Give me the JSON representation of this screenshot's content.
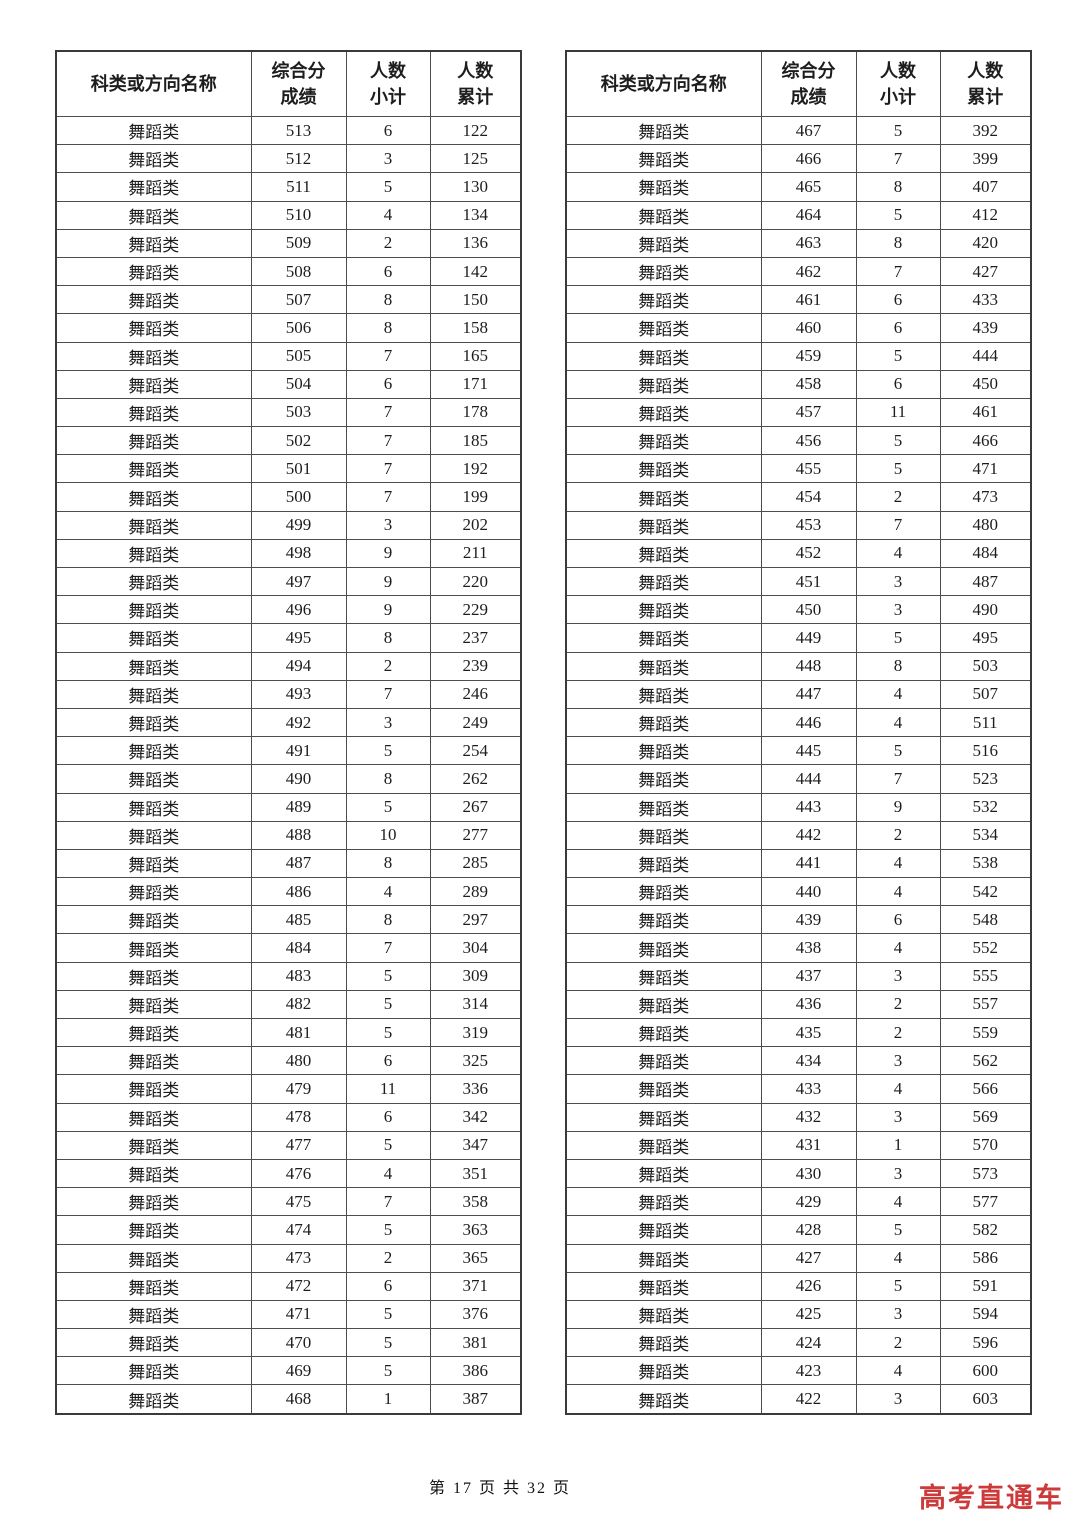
{
  "page": {
    "footer": "第 17 页 共 32 页",
    "watermark": "高考直通车",
    "watermark_color": "#cd3a3a"
  },
  "tables": [
    {
      "headers": [
        [
          "科类或方向名称"
        ],
        [
          "综合分",
          "成绩"
        ],
        [
          "人数",
          "小计"
        ],
        [
          "人数",
          "累计"
        ]
      ],
      "rows": [
        [
          "舞蹈类",
          "513",
          "6",
          "122"
        ],
        [
          "舞蹈类",
          "512",
          "3",
          "125"
        ],
        [
          "舞蹈类",
          "511",
          "5",
          "130"
        ],
        [
          "舞蹈类",
          "510",
          "4",
          "134"
        ],
        [
          "舞蹈类",
          "509",
          "2",
          "136"
        ],
        [
          "舞蹈类",
          "508",
          "6",
          "142"
        ],
        [
          "舞蹈类",
          "507",
          "8",
          "150"
        ],
        [
          "舞蹈类",
          "506",
          "8",
          "158"
        ],
        [
          "舞蹈类",
          "505",
          "7",
          "165"
        ],
        [
          "舞蹈类",
          "504",
          "6",
          "171"
        ],
        [
          "舞蹈类",
          "503",
          "7",
          "178"
        ],
        [
          "舞蹈类",
          "502",
          "7",
          "185"
        ],
        [
          "舞蹈类",
          "501",
          "7",
          "192"
        ],
        [
          "舞蹈类",
          "500",
          "7",
          "199"
        ],
        [
          "舞蹈类",
          "499",
          "3",
          "202"
        ],
        [
          "舞蹈类",
          "498",
          "9",
          "211"
        ],
        [
          "舞蹈类",
          "497",
          "9",
          "220"
        ],
        [
          "舞蹈类",
          "496",
          "9",
          "229"
        ],
        [
          "舞蹈类",
          "495",
          "8",
          "237"
        ],
        [
          "舞蹈类",
          "494",
          "2",
          "239"
        ],
        [
          "舞蹈类",
          "493",
          "7",
          "246"
        ],
        [
          "舞蹈类",
          "492",
          "3",
          "249"
        ],
        [
          "舞蹈类",
          "491",
          "5",
          "254"
        ],
        [
          "舞蹈类",
          "490",
          "8",
          "262"
        ],
        [
          "舞蹈类",
          "489",
          "5",
          "267"
        ],
        [
          "舞蹈类",
          "488",
          "10",
          "277"
        ],
        [
          "舞蹈类",
          "487",
          "8",
          "285"
        ],
        [
          "舞蹈类",
          "486",
          "4",
          "289"
        ],
        [
          "舞蹈类",
          "485",
          "8",
          "297"
        ],
        [
          "舞蹈类",
          "484",
          "7",
          "304"
        ],
        [
          "舞蹈类",
          "483",
          "5",
          "309"
        ],
        [
          "舞蹈类",
          "482",
          "5",
          "314"
        ],
        [
          "舞蹈类",
          "481",
          "5",
          "319"
        ],
        [
          "舞蹈类",
          "480",
          "6",
          "325"
        ],
        [
          "舞蹈类",
          "479",
          "11",
          "336"
        ],
        [
          "舞蹈类",
          "478",
          "6",
          "342"
        ],
        [
          "舞蹈类",
          "477",
          "5",
          "347"
        ],
        [
          "舞蹈类",
          "476",
          "4",
          "351"
        ],
        [
          "舞蹈类",
          "475",
          "7",
          "358"
        ],
        [
          "舞蹈类",
          "474",
          "5",
          "363"
        ],
        [
          "舞蹈类",
          "473",
          "2",
          "365"
        ],
        [
          "舞蹈类",
          "472",
          "6",
          "371"
        ],
        [
          "舞蹈类",
          "471",
          "5",
          "376"
        ],
        [
          "舞蹈类",
          "470",
          "5",
          "381"
        ],
        [
          "舞蹈类",
          "469",
          "5",
          "386"
        ],
        [
          "舞蹈类",
          "468",
          "1",
          "387"
        ]
      ]
    },
    {
      "headers": [
        [
          "科类或方向名称"
        ],
        [
          "综合分",
          "成绩"
        ],
        [
          "人数",
          "小计"
        ],
        [
          "人数",
          "累计"
        ]
      ],
      "rows": [
        [
          "舞蹈类",
          "467",
          "5",
          "392"
        ],
        [
          "舞蹈类",
          "466",
          "7",
          "399"
        ],
        [
          "舞蹈类",
          "465",
          "8",
          "407"
        ],
        [
          "舞蹈类",
          "464",
          "5",
          "412"
        ],
        [
          "舞蹈类",
          "463",
          "8",
          "420"
        ],
        [
          "舞蹈类",
          "462",
          "7",
          "427"
        ],
        [
          "舞蹈类",
          "461",
          "6",
          "433"
        ],
        [
          "舞蹈类",
          "460",
          "6",
          "439"
        ],
        [
          "舞蹈类",
          "459",
          "5",
          "444"
        ],
        [
          "舞蹈类",
          "458",
          "6",
          "450"
        ],
        [
          "舞蹈类",
          "457",
          "11",
          "461"
        ],
        [
          "舞蹈类",
          "456",
          "5",
          "466"
        ],
        [
          "舞蹈类",
          "455",
          "5",
          "471"
        ],
        [
          "舞蹈类",
          "454",
          "2",
          "473"
        ],
        [
          "舞蹈类",
          "453",
          "7",
          "480"
        ],
        [
          "舞蹈类",
          "452",
          "4",
          "484"
        ],
        [
          "舞蹈类",
          "451",
          "3",
          "487"
        ],
        [
          "舞蹈类",
          "450",
          "3",
          "490"
        ],
        [
          "舞蹈类",
          "449",
          "5",
          "495"
        ],
        [
          "舞蹈类",
          "448",
          "8",
          "503"
        ],
        [
          "舞蹈类",
          "447",
          "4",
          "507"
        ],
        [
          "舞蹈类",
          "446",
          "4",
          "511"
        ],
        [
          "舞蹈类",
          "445",
          "5",
          "516"
        ],
        [
          "舞蹈类",
          "444",
          "7",
          "523"
        ],
        [
          "舞蹈类",
          "443",
          "9",
          "532"
        ],
        [
          "舞蹈类",
          "442",
          "2",
          "534"
        ],
        [
          "舞蹈类",
          "441",
          "4",
          "538"
        ],
        [
          "舞蹈类",
          "440",
          "4",
          "542"
        ],
        [
          "舞蹈类",
          "439",
          "6",
          "548"
        ],
        [
          "舞蹈类",
          "438",
          "4",
          "552"
        ],
        [
          "舞蹈类",
          "437",
          "3",
          "555"
        ],
        [
          "舞蹈类",
          "436",
          "2",
          "557"
        ],
        [
          "舞蹈类",
          "435",
          "2",
          "559"
        ],
        [
          "舞蹈类",
          "434",
          "3",
          "562"
        ],
        [
          "舞蹈类",
          "433",
          "4",
          "566"
        ],
        [
          "舞蹈类",
          "432",
          "3",
          "569"
        ],
        [
          "舞蹈类",
          "431",
          "1",
          "570"
        ],
        [
          "舞蹈类",
          "430",
          "3",
          "573"
        ],
        [
          "舞蹈类",
          "429",
          "4",
          "577"
        ],
        [
          "舞蹈类",
          "428",
          "5",
          "582"
        ],
        [
          "舞蹈类",
          "427",
          "4",
          "586"
        ],
        [
          "舞蹈类",
          "426",
          "5",
          "591"
        ],
        [
          "舞蹈类",
          "425",
          "3",
          "594"
        ],
        [
          "舞蹈类",
          "424",
          "2",
          "596"
        ],
        [
          "舞蹈类",
          "423",
          "4",
          "600"
        ],
        [
          "舞蹈类",
          "422",
          "3",
          "603"
        ]
      ]
    }
  ]
}
